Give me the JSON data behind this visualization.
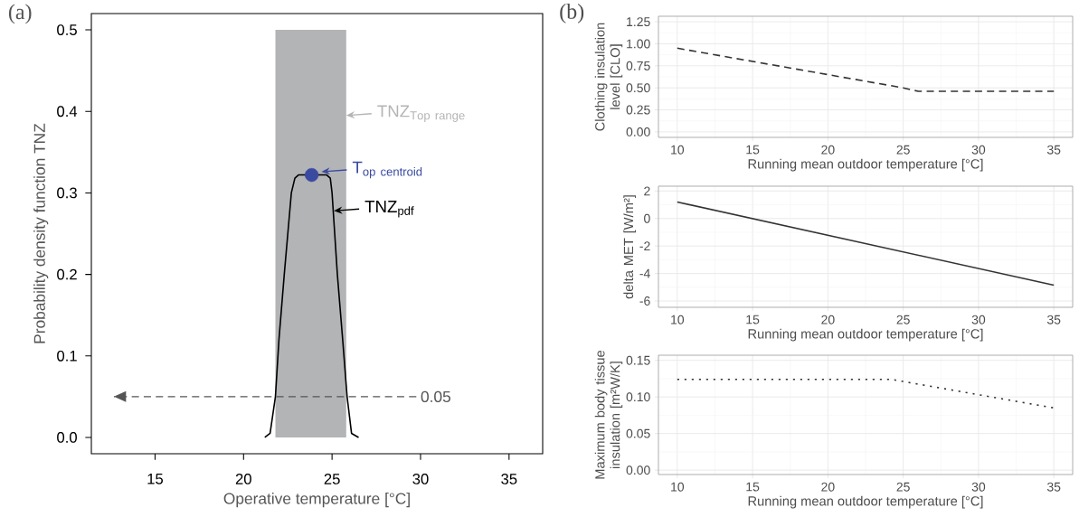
{
  "chart_data": [
    {
      "type": "line",
      "title": "(a)",
      "xlabel": "Operative temperature [°C]",
      "ylabel": "Probability density function TNZ",
      "xlim": [
        11.4,
        36.9
      ],
      "ylim": [
        -0.02,
        0.52
      ],
      "xticks": [
        15,
        20,
        25,
        30,
        35
      ],
      "yticks": [
        {
          "value": 0,
          "label": "0.0"
        },
        {
          "value": 0.1,
          "label": "0.1"
        },
        {
          "value": 0.2,
          "label": "0.2"
        },
        {
          "value": 0.3,
          "label": "0.3"
        },
        {
          "value": 0.4,
          "label": "0.4"
        },
        {
          "value": 0.5,
          "label": "0.5"
        }
      ],
      "series": [
        {
          "type": "area",
          "color": "#b3b4b6",
          "x": [
            21.8,
            25.8
          ],
          "values": [
            0.5,
            0.5
          ]
        },
        {
          "type": "scatter",
          "color": "#3a4aa0",
          "x": [
            23.85
          ],
          "values": [
            0.322
          ]
        },
        {
          "type": "line",
          "color": "#000000",
          "x": [
            21.2,
            21.5,
            21.8,
            22.0,
            22.3,
            22.7,
            22.9,
            23.1,
            24.7,
            24.9,
            25.0,
            25.3,
            25.6,
            25.85,
            26.1,
            26.5
          ],
          "values": [
            0.0,
            0.005,
            0.05,
            0.12,
            0.2,
            0.3,
            0.318,
            0.322,
            0.322,
            0.318,
            0.3,
            0.2,
            0.12,
            0.05,
            0.005,
            0.0
          ]
        }
      ],
      "ref_lines": [
        {
          "axis": "y",
          "value": 0.05,
          "label": "0.05",
          "color": "#555555",
          "line_style": "dashed"
        }
      ],
      "annotations": [
        {
          "text": "\\mathrm{TNZ}_{\\mathrm{Top\\ range}}",
          "x": 25.8,
          "y": 0.395
        },
        {
          "text": "\\mathrm{T}_{\\mathrm{op\\ centroid}}",
          "x": 24.4,
          "y": 0.326
        },
        {
          "text": "\\mathrm{TNZ}_{\\mathrm{pdf}}",
          "x": 25.1,
          "y": 0.278
        }
      ]
    },
    {
      "type": "line",
      "title": "(b)",
      "xlabel": "Running mean outdoor temperature [°C]",
      "ylabel": "Clothing insulation level [CLO]",
      "xlim": [
        8.75,
        36.25
      ],
      "ylim": [
        -0.0625,
        1.3125
      ],
      "xticks": [
        10,
        15,
        20,
        25,
        30,
        35
      ],
      "yticks": [
        {
          "value": 0,
          "label": "0.00"
        },
        {
          "value": 0.25,
          "label": "0.25"
        },
        {
          "value": 0.5,
          "label": "0.50"
        },
        {
          "value": 0.75,
          "label": "0.75"
        },
        {
          "value": 1,
          "label": "1.00"
        },
        {
          "value": 1.25,
          "label": "1.25"
        }
      ],
      "grid": true,
      "line_style": "dashed",
      "series": [
        {
          "color": "#333333",
          "x": [
            10,
            25,
            26,
            35
          ],
          "values": [
            0.95,
            0.5,
            0.46,
            0.46
          ]
        }
      ]
    },
    {
      "type": "line",
      "xlabel": "Running mean outdoor temperature [°C]",
      "ylabel": "delta MET [W/m²]",
      "xlim": [
        8.75,
        36.25
      ],
      "ylim": [
        -6.46,
        2.35
      ],
      "xticks": [
        10,
        15,
        20,
        25,
        30,
        35
      ],
      "yticks": [
        -6,
        -4,
        -2,
        0,
        2
      ],
      "grid": true,
      "line_style": "solid",
      "series": [
        {
          "color": "#333333",
          "x": [
            10,
            35
          ],
          "values": [
            1.2,
            -4.85
          ]
        }
      ]
    },
    {
      "type": "line",
      "xlabel": "Running mean outdoor temperature [°C]",
      "ylabel": "Maximum body tissue insulation [m²W/K]",
      "xlim": [
        8.75,
        36.25
      ],
      "ylim": [
        -0.006,
        0.157
      ],
      "xticks": [
        10,
        15,
        20,
        25,
        30,
        35
      ],
      "yticks": [
        {
          "value": 0,
          "label": "0.00"
        },
        {
          "value": 0.05,
          "label": "0.05"
        },
        {
          "value": 0.1,
          "label": "0.10"
        },
        {
          "value": 0.15,
          "label": "0.15"
        }
      ],
      "grid": true,
      "line_style": "dotted",
      "series": [
        {
          "color": "#333333",
          "x": [
            10,
            24.2,
            35
          ],
          "values": [
            0.124,
            0.124,
            0.085
          ]
        }
      ]
    }
  ]
}
